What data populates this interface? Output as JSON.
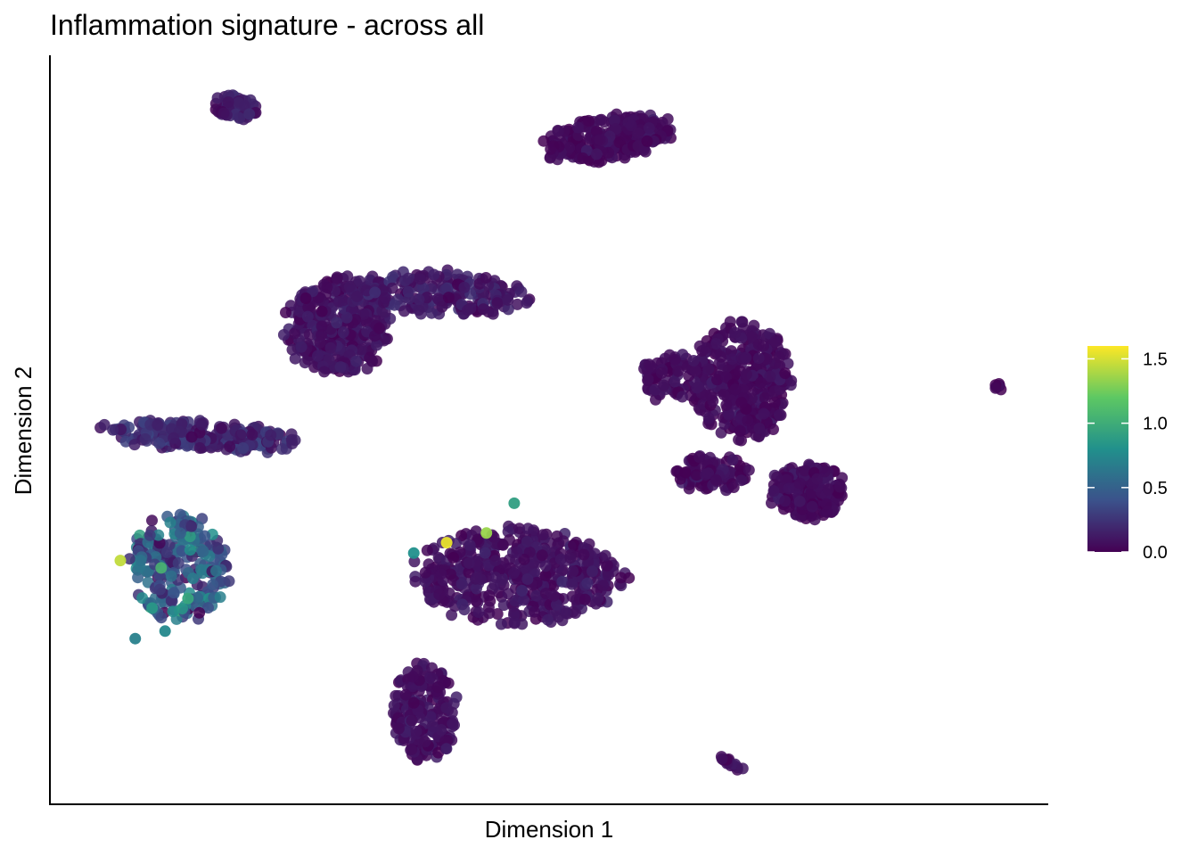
{
  "chart_data": {
    "type": "scatter",
    "title": "Inflammation signature - across all",
    "xlabel": "Dimension 1",
    "ylabel": "Dimension 2",
    "xlim": [
      0,
      100
    ],
    "ylim": [
      0,
      100
    ],
    "grid": false,
    "colorbar": {
      "placement": "right",
      "range": [
        0.0,
        1.6
      ],
      "ticks": [
        "0.0",
        "0.5",
        "1.0",
        "1.5"
      ],
      "tick_values": [
        0.0,
        0.5,
        1.0,
        1.5
      ],
      "colors": [
        "#440154",
        "#3B528B",
        "#21908C",
        "#5DC863",
        "#FDE725"
      ]
    },
    "clusters": [
      {
        "name": "cluster-top-left-small",
        "cx": 18.5,
        "cy": 93.2,
        "rx": 2.6,
        "ry": 1.6,
        "angle": -15,
        "n": 60,
        "score_mean": 0.12
      },
      {
        "name": "cluster-top-right-ring",
        "cx": 55.9,
        "cy": 89.2,
        "rx": 6.6,
        "ry": 3.0,
        "angle": 14,
        "n": 260,
        "score_mean": 0.05
      },
      {
        "name": "cluster-center-upper-body",
        "cx": 28.8,
        "cy": 63.8,
        "rx": 5.2,
        "ry": 6.4,
        "angle": 0,
        "n": 360,
        "score_mean": 0.08
      },
      {
        "name": "cluster-center-upper-arm",
        "cx": 39.3,
        "cy": 68.2,
        "rx": 8.6,
        "ry": 3.0,
        "angle": -5,
        "n": 200,
        "score_mean": 0.12
      },
      {
        "name": "cluster-left-elongated",
        "cx": 15.0,
        "cy": 49.0,
        "rx": 10.0,
        "ry": 2.0,
        "angle": -5,
        "n": 220,
        "score_mean": 0.18
      },
      {
        "name": "cluster-left-lower",
        "cx": 12.8,
        "cy": 31.5,
        "rx": 5.0,
        "ry": 7.0,
        "angle": 0,
        "n": 240,
        "score_mean": 0.45
      },
      {
        "name": "cluster-center-lower-main",
        "cx": 47.0,
        "cy": 30.0,
        "rx": 10.5,
        "ry": 6.5,
        "angle": 0,
        "n": 480,
        "score_mean": 0.08
      },
      {
        "name": "cluster-center-bottom",
        "cx": 37.5,
        "cy": 11.8,
        "rx": 3.2,
        "ry": 6.8,
        "angle": 0,
        "n": 200,
        "score_mean": 0.07
      },
      {
        "name": "cluster-right-upper",
        "cx": 69.2,
        "cy": 56.5,
        "rx": 5.0,
        "ry": 7.8,
        "angle": 0,
        "n": 380,
        "score_mean": 0.05
      },
      {
        "name": "cluster-right-left-arm",
        "cx": 62.3,
        "cy": 57.0,
        "rx": 3.2,
        "ry": 3.5,
        "angle": 0,
        "n": 80,
        "score_mean": 0.06
      },
      {
        "name": "cluster-right-lower-blob",
        "cx": 76.0,
        "cy": 41.5,
        "rx": 3.8,
        "ry": 4.0,
        "angle": 0,
        "n": 220,
        "score_mean": 0.05
      },
      {
        "name": "cluster-right-lower-left",
        "cx": 66.5,
        "cy": 44.0,
        "rx": 3.5,
        "ry": 2.5,
        "angle": 0,
        "n": 90,
        "score_mean": 0.05
      },
      {
        "name": "cluster-far-right-dot",
        "cx": 95.2,
        "cy": 55.5,
        "rx": 0.5,
        "ry": 0.6,
        "angle": 0,
        "n": 8,
        "score_mean": 0.05
      },
      {
        "name": "cluster-bottom-right-line",
        "cx": 68.5,
        "cy": 4.9,
        "rx": 1.7,
        "ry": 0.35,
        "angle": -38,
        "n": 14,
        "score_mean": 0.05
      }
    ],
    "highlight_points": [
      {
        "x": 39.7,
        "y": 34.7,
        "value": 1.55
      },
      {
        "x": 43.7,
        "y": 36.0,
        "value": 1.35
      },
      {
        "x": 6.9,
        "y": 32.3,
        "value": 1.45
      },
      {
        "x": 13.7,
        "y": 27.2,
        "value": 0.95
      },
      {
        "x": 11.4,
        "y": 22.8,
        "value": 0.75
      },
      {
        "x": 10.1,
        "y": 25.9,
        "value": 0.85
      },
      {
        "x": 36.4,
        "y": 33.3,
        "value": 0.8
      },
      {
        "x": 46.5,
        "y": 40.0,
        "value": 0.9
      },
      {
        "x": 14.2,
        "y": 29.9,
        "value": 0.65
      },
      {
        "x": 8.4,
        "y": 21.8,
        "value": 0.7
      }
    ]
  }
}
